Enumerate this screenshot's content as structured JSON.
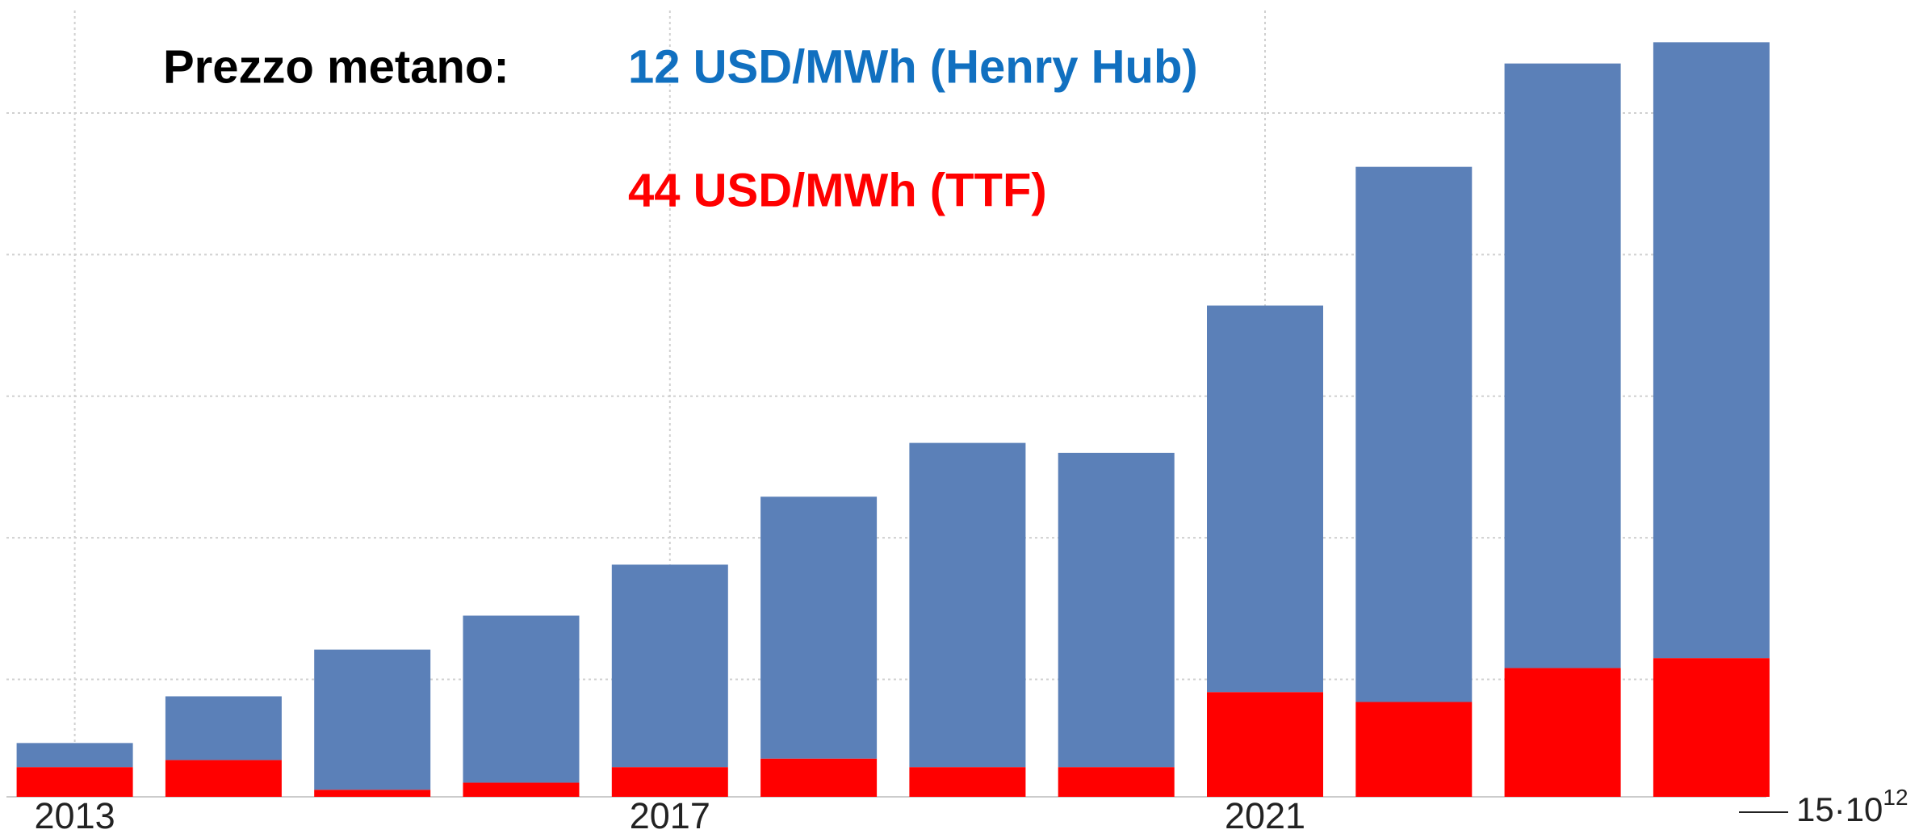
{
  "chart_data": {
    "type": "stacked_bar",
    "annotation": "Prezzo metano:",
    "categories": [
      "2013",
      null,
      null,
      null,
      "2017",
      null,
      null,
      null,
      "2021",
      null,
      null,
      null
    ],
    "series": [
      {
        "name": "44 USD/MWh (TTF)",
        "color": "#ff0000",
        "values": [
          0.21,
          0.26,
          0.05,
          0.1,
          0.21,
          0.27,
          0.21,
          0.21,
          0.74,
          0.67,
          0.91,
          0.98
        ]
      },
      {
        "name": "12 USD/MWh (Henry Hub)",
        "color": "#5b80b8",
        "values": [
          0.17,
          0.45,
          0.99,
          1.18,
          1.43,
          1.85,
          2.29,
          2.22,
          2.73,
          3.78,
          4.27,
          4.35
        ]
      }
    ],
    "legend_colors": [
      "#ff0000",
      "#1170c0"
    ],
    "ylim": [
      0,
      5.6
    ],
    "ygrid": [
      0.83,
      1.83,
      2.83,
      3.83,
      4.83
    ],
    "grid": true,
    "axis_note": {
      "base": "15·10",
      "exponent": "12"
    }
  }
}
